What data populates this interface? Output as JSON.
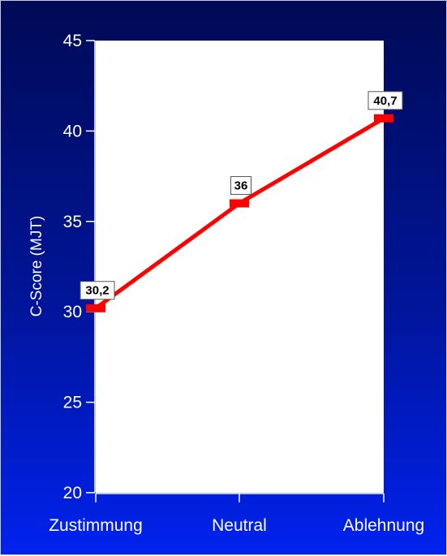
{
  "chart_data": {
    "type": "line",
    "categories": [
      "Zustimmung",
      "Neutral",
      "Ablehnung"
    ],
    "series": [
      {
        "values": [
          30.2,
          36,
          40.7
        ],
        "data_labels": [
          "30,2",
          "36",
          "40,7"
        ],
        "color": "#ff0000"
      }
    ],
    "title": "",
    "xlabel": "",
    "ylabel": "C-Score (MJT)",
    "ylim": [
      20,
      45
    ],
    "yticks": [
      20,
      25,
      30,
      35,
      40,
      45
    ],
    "grid": false,
    "legend": "none",
    "colors": {
      "plot_background": "#ffffff",
      "axis": "#ffffff",
      "label_box_border": "#555555"
    }
  }
}
